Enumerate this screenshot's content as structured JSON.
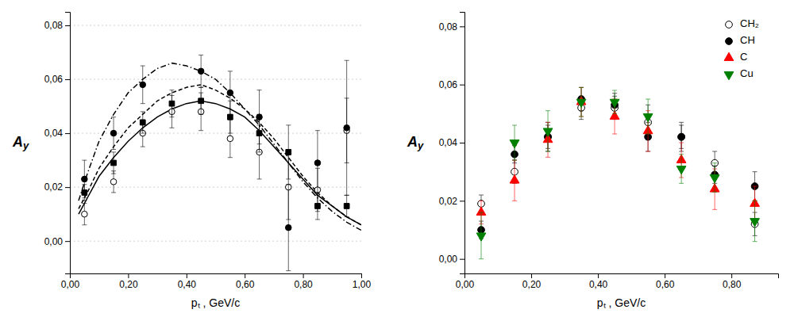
{
  "chart_data": [
    {
      "type": "scatter",
      "x_label": "pₜ , GeV/c",
      "y_label": "Ay",
      "xlim": [
        0,
        1.0
      ],
      "ylim": [
        -0.012,
        0.085
      ],
      "xticks": [
        {
          "value": 0.0,
          "label": "0,00"
        },
        {
          "value": 0.2,
          "label": "0,20"
        },
        {
          "value": 0.4,
          "label": "0,40"
        },
        {
          "value": 0.6,
          "label": "0,60"
        },
        {
          "value": 0.8,
          "label": "0,80"
        },
        {
          "value": 1.0,
          "label": "1,00"
        }
      ],
      "yticks": [
        {
          "value": 0.0,
          "label": "0,00"
        },
        {
          "value": 0.02,
          "label": "0,02"
        },
        {
          "value": 0.04,
          "label": "0,04"
        },
        {
          "value": 0.06,
          "label": "0,06"
        },
        {
          "value": 0.08,
          "label": "0,08"
        }
      ],
      "grid": true,
      "series": [
        {
          "type": "line",
          "line_style": "solid",
          "color": "black",
          "x": [
            0.03,
            0.06,
            0.1,
            0.15,
            0.2,
            0.25,
            0.3,
            0.35,
            0.4,
            0.45,
            0.5,
            0.55,
            0.6,
            0.65,
            0.7,
            0.75,
            0.8,
            0.85,
            0.9,
            0.95,
            1.0
          ],
          "values": [
            0.01,
            0.016,
            0.024,
            0.031,
            0.037,
            0.042,
            0.046,
            0.049,
            0.051,
            0.052,
            0.051,
            0.049,
            0.046,
            0.041,
            0.035,
            0.029,
            0.023,
            0.017,
            0.013,
            0.009,
            0.006
          ]
        },
        {
          "type": "line",
          "line_style": "dashed",
          "color": "black",
          "x": [
            0.03,
            0.06,
            0.1,
            0.15,
            0.2,
            0.25,
            0.3,
            0.35,
            0.4,
            0.45,
            0.5,
            0.55,
            0.6,
            0.65,
            0.7,
            0.75,
            0.8,
            0.85,
            0.9,
            0.95,
            1.0
          ],
          "values": [
            0.012,
            0.018,
            0.027,
            0.035,
            0.042,
            0.047,
            0.052,
            0.055,
            0.057,
            0.058,
            0.056,
            0.053,
            0.049,
            0.044,
            0.038,
            0.031,
            0.024,
            0.018,
            0.013,
            0.009,
            0.006
          ]
        },
        {
          "type": "line",
          "line_style": "dashdot",
          "color": "black",
          "x": [
            0.03,
            0.06,
            0.1,
            0.15,
            0.2,
            0.25,
            0.3,
            0.35,
            0.4,
            0.45,
            0.5,
            0.55,
            0.6,
            0.65,
            0.7,
            0.75,
            0.8,
            0.85,
            0.9,
            0.95,
            1.0
          ],
          "values": [
            0.015,
            0.025,
            0.037,
            0.047,
            0.055,
            0.06,
            0.064,
            0.066,
            0.065,
            0.063,
            0.06,
            0.055,
            0.049,
            0.043,
            0.036,
            0.029,
            0.022,
            0.016,
            0.011,
            0.007,
            0.004
          ]
        },
        {
          "type": "scatter",
          "marker": "open_circle",
          "color": "black",
          "x": [
            0.05,
            0.15,
            0.25,
            0.35,
            0.45,
            0.55,
            0.65,
            0.75,
            0.85,
            0.95
          ],
          "values": [
            0.01,
            0.022,
            0.04,
            0.048,
            0.048,
            0.038,
            0.033,
            0.02,
            0.019,
            0.041
          ],
          "yerr": [
            0.004,
            0.004,
            0.005,
            0.006,
            0.007,
            0.007,
            0.01,
            0.012,
            0.008,
            0.012
          ]
        },
        {
          "type": "scatter",
          "marker": "square",
          "color": "black",
          "x": [
            0.05,
            0.15,
            0.25,
            0.35,
            0.45,
            0.55,
            0.65,
            0.75,
            0.85,
            0.95
          ],
          "values": [
            0.018,
            0.029,
            0.044,
            0.051,
            0.052,
            0.046,
            0.04,
            0.033,
            0.013,
            0.013
          ],
          "yerr": [
            0.003,
            0.004,
            0.004,
            0.005,
            0.005,
            0.006,
            0.007,
            0.01,
            0.005,
            0.004
          ]
        },
        {
          "type": "scatter",
          "marker": "circle",
          "color": "black",
          "x": [
            0.05,
            0.15,
            0.25,
            0.45,
            0.55,
            0.65,
            0.75,
            0.85,
            0.95
          ],
          "values": [
            0.023,
            0.04,
            0.058,
            0.063,
            0.055,
            0.046,
            0.005,
            0.029,
            0.042
          ],
          "yerr": [
            0.007,
            0.006,
            0.007,
            0.006,
            0.008,
            0.01,
            0.016,
            0.012,
            0.025
          ]
        }
      ]
    },
    {
      "type": "scatter",
      "x_label": "pₜ , GeV/c",
      "y_label": "Ay",
      "xlim": [
        0,
        0.94
      ],
      "ylim": [
        -0.005,
        0.085
      ],
      "xticks": [
        {
          "value": 0.0,
          "label": "0,00"
        },
        {
          "value": 0.2,
          "label": "0,20"
        },
        {
          "value": 0.4,
          "label": "0,40"
        },
        {
          "value": 0.6,
          "label": "0,60"
        },
        {
          "value": 0.8,
          "label": "0,80"
        }
      ],
      "yticks": [
        {
          "value": 0.0,
          "label": "0,00"
        },
        {
          "value": 0.02,
          "label": "0,02"
        },
        {
          "value": 0.04,
          "label": "0,04"
        },
        {
          "value": 0.06,
          "label": "0,06"
        },
        {
          "value": 0.08,
          "label": "0,08"
        }
      ],
      "grid": false,
      "legend": "upper right",
      "series": [
        {
          "name": "CH₂",
          "type": "scatter",
          "marker": "open_circle",
          "color": "black",
          "x": [
            0.05,
            0.15,
            0.25,
            0.35,
            0.45,
            0.55,
            0.65,
            0.75,
            0.87
          ],
          "values": [
            0.019,
            0.03,
            0.042,
            0.052,
            0.052,
            0.047,
            0.042,
            0.033,
            0.012
          ],
          "yerr": [
            0.003,
            0.004,
            0.005,
            0.004,
            0.004,
            0.006,
            0.005,
            0.004,
            0.004
          ]
        },
        {
          "name": "CH",
          "type": "scatter",
          "marker": "circle",
          "color": "black",
          "x": [
            0.05,
            0.15,
            0.25,
            0.35,
            0.45,
            0.55,
            0.65,
            0.75,
            0.87
          ],
          "values": [
            0.01,
            0.036,
            0.042,
            0.055,
            0.053,
            0.042,
            0.042,
            0.029,
            0.025
          ],
          "yerr": [
            0.003,
            0.003,
            0.004,
            0.004,
            0.004,
            0.005,
            0.004,
            0.003,
            0.005
          ]
        },
        {
          "name": "C",
          "type": "scatter",
          "marker": "triangle_up",
          "color": "red",
          "x": [
            0.05,
            0.15,
            0.25,
            0.35,
            0.45,
            0.55,
            0.65,
            0.75,
            0.87
          ],
          "values": [
            0.016,
            0.027,
            0.041,
            0.054,
            0.049,
            0.044,
            0.034,
            0.024,
            0.019
          ],
          "yerr": [
            0.004,
            0.007,
            0.006,
            0.005,
            0.006,
            0.007,
            0.006,
            0.007,
            0.006
          ]
        },
        {
          "name": "Cu",
          "type": "scatter",
          "marker": "triangle_down",
          "color": "green",
          "x": [
            0.05,
            0.15,
            0.25,
            0.35,
            0.45,
            0.55,
            0.65,
            0.75,
            0.87
          ],
          "values": [
            0.008,
            0.04,
            0.044,
            0.054,
            0.054,
            0.049,
            0.031,
            0.028,
            0.013
          ],
          "yerr": [
            0.008,
            0.006,
            0.007,
            0.005,
            0.004,
            0.006,
            0.005,
            0.005,
            0.007
          ]
        }
      ]
    }
  ]
}
